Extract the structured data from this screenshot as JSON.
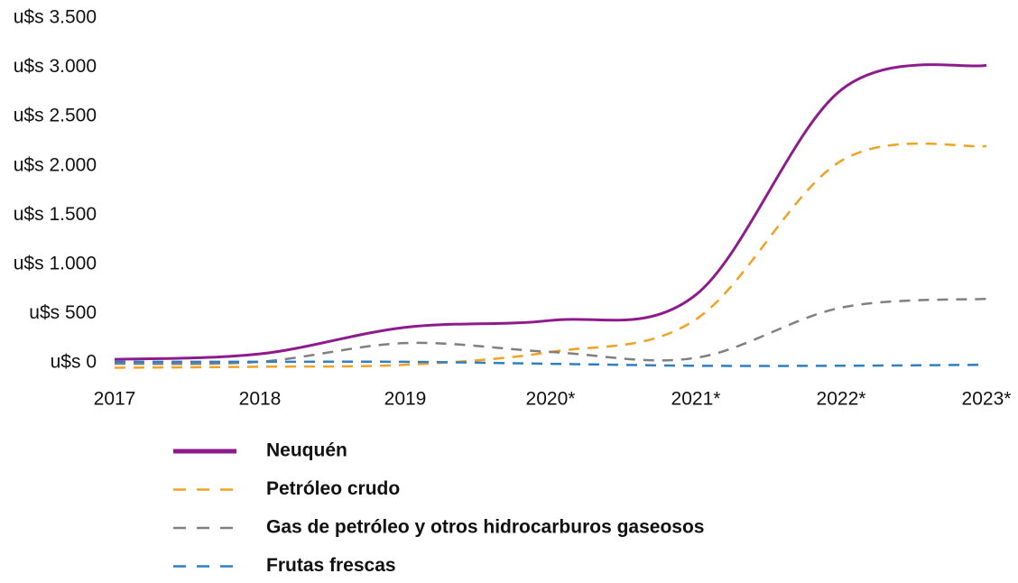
{
  "chart_data": {
    "type": "line",
    "categories": [
      "2017",
      "2018",
      "2019",
      "2020*",
      "2021*",
      "2022*",
      "2023*"
    ],
    "series": [
      {
        "name": "Neuquén",
        "color": "#8e1b8c",
        "dash": "solid",
        "values": [
          35,
          90,
          360,
          430,
          690,
          2770,
          3020
        ]
      },
      {
        "name": "Petróleo crudo",
        "color": "#f0a223",
        "dash": "dashed",
        "values": [
          -50,
          -40,
          -20,
          110,
          440,
          2050,
          2200
        ]
      },
      {
        "name": "Gas de petróleo y otros hidrocarburos gaseosos",
        "color": "#808080",
        "dash": "dashed",
        "values": [
          -10,
          10,
          200,
          110,
          50,
          560,
          650
        ]
      },
      {
        "name": "Frutas frescas",
        "color": "#2f7fc1",
        "dash": "dashed",
        "values": [
          10,
          10,
          10,
          -10,
          -30,
          -30,
          -20
        ]
      }
    ],
    "ylim": [
      -100,
      3500
    ],
    "yticks": [
      {
        "value": 0,
        "label": "u$s 0"
      },
      {
        "value": 500,
        "label": "u$s 500"
      },
      {
        "value": 1000,
        "label": "u$s 1.000"
      },
      {
        "value": 1500,
        "label": "u$s 1.500"
      },
      {
        "value": 2000,
        "label": "u$s 2.000"
      },
      {
        "value": 2500,
        "label": "u$s 2.500"
      },
      {
        "value": 3000,
        "label": "u$s 3.000"
      },
      {
        "value": 3500,
        "label": "u$s 3.500"
      }
    ],
    "grid": false
  }
}
